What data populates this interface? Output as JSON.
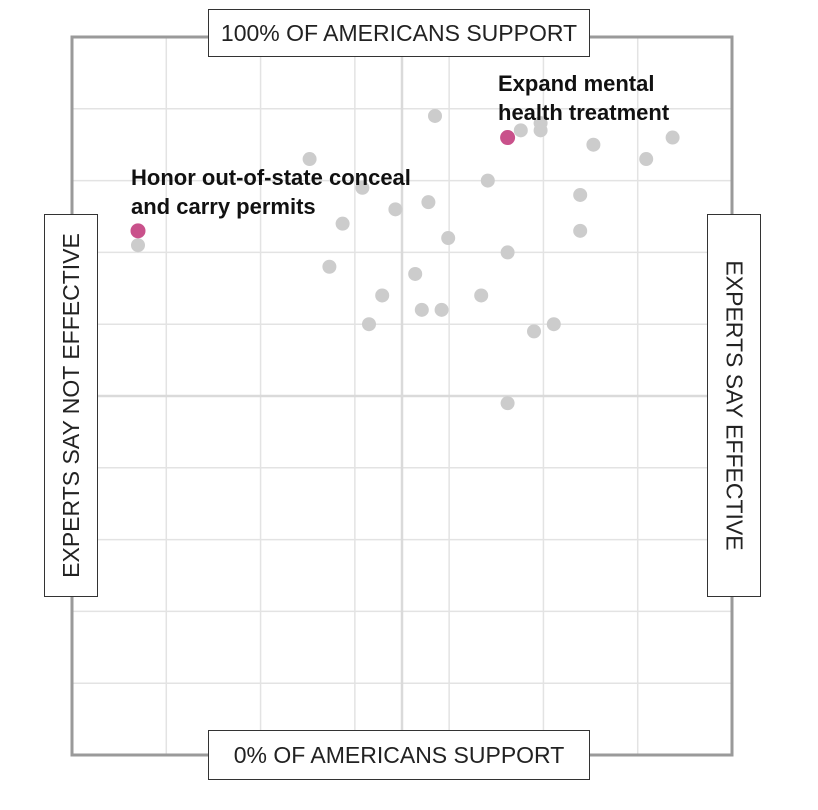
{
  "chart_data": {
    "type": "scatter",
    "xlabel_left": "EXPERTS SAY NOT EFFECTIVE",
    "xlabel_right": "EXPERTS SAY EFFECTIVE",
    "ylabel_top": "100% OF AMERICANS SUPPORT",
    "ylabel_bottom": "0% OF AMERICANS SUPPORT",
    "xlim": [
      0,
      100
    ],
    "ylim": [
      0,
      100
    ],
    "grid": true,
    "highlight_color": "#c9518b",
    "point_color": "#cccccc",
    "points": [
      {
        "x": 10,
        "y": 71
      },
      {
        "x": 36,
        "y": 83
      },
      {
        "x": 41,
        "y": 74
      },
      {
        "x": 39,
        "y": 68
      },
      {
        "x": 44,
        "y": 79
      },
      {
        "x": 49,
        "y": 76
      },
      {
        "x": 55,
        "y": 89
      },
      {
        "x": 54,
        "y": 77
      },
      {
        "x": 57,
        "y": 72
      },
      {
        "x": 52,
        "y": 67
      },
      {
        "x": 53,
        "y": 62
      },
      {
        "x": 56,
        "y": 62
      },
      {
        "x": 63,
        "y": 80
      },
      {
        "x": 66,
        "y": 70
      },
      {
        "x": 62,
        "y": 64
      },
      {
        "x": 70,
        "y": 59
      },
      {
        "x": 68,
        "y": 87
      },
      {
        "x": 71,
        "y": 87
      },
      {
        "x": 71,
        "y": 88
      },
      {
        "x": 77,
        "y": 73
      },
      {
        "x": 77,
        "y": 78
      },
      {
        "x": 79,
        "y": 85
      },
      {
        "x": 87,
        "y": 83
      },
      {
        "x": 91,
        "y": 86
      },
      {
        "x": 47,
        "y": 64
      },
      {
        "x": 45,
        "y": 60
      },
      {
        "x": 73,
        "y": 60
      },
      {
        "x": 66,
        "y": 49
      }
    ],
    "highlights": [
      {
        "label_line1": "Expand mental",
        "label_line2": "health treatment",
        "x": 66,
        "y": 86
      },
      {
        "label_line1": "Honor out-of-state conceal",
        "label_line2": "and carry permits",
        "x": 10,
        "y": 73
      }
    ]
  }
}
